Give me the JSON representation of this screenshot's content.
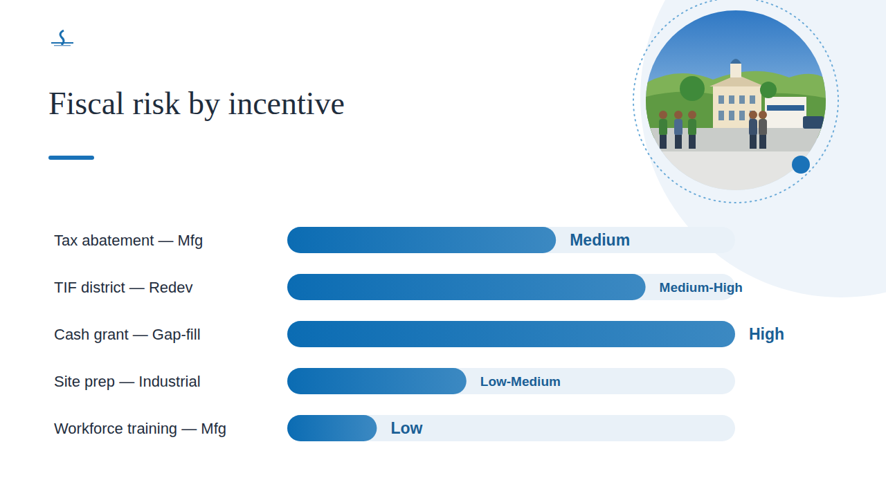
{
  "chart_data": {
    "type": "bar",
    "orientation": "horizontal",
    "title": "Fiscal risk by incentive",
    "categories": [
      "Tax abatement — Mfg",
      "TIF district — Redev",
      "Cash grant — Gap-fill",
      "Site prep — Industrial",
      "Workforce training — Mfg"
    ],
    "values": [
      60,
      80,
      100,
      40,
      20
    ],
    "value_labels": [
      "Medium",
      "Medium-High",
      "High",
      "Low-Medium",
      "Low"
    ],
    "xlim": [
      0,
      100
    ],
    "data_labels": true,
    "tick_labels": false,
    "grid": false,
    "color": "#0b6cb3"
  }
}
